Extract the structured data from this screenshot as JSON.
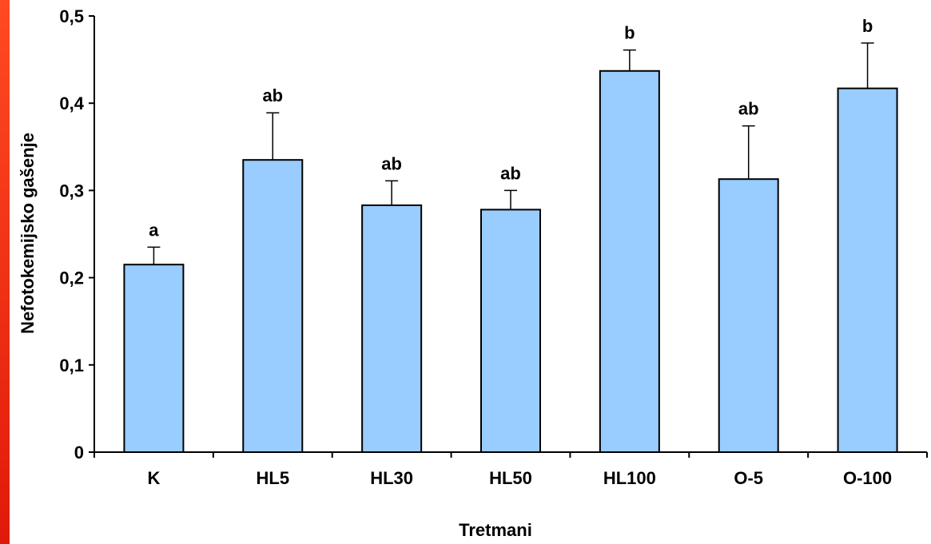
{
  "colors": {
    "bar_fill": "#99ccff",
    "bar_stroke": "#000000",
    "edge_strip_top": "#ff4a22",
    "edge_strip_bottom": "#e01a0a"
  },
  "chart_data": {
    "type": "bar",
    "title": "",
    "xlabel": "Tretmani",
    "ylabel": "Nefotokemijsko gašenje",
    "ylim": [
      0,
      0.5
    ],
    "y_ticks": [
      0,
      0.1,
      0.2,
      0.3,
      0.4,
      0.5
    ],
    "y_tick_labels": [
      "0",
      "0,1",
      "0,2",
      "0,3",
      "0,4",
      "0,5"
    ],
    "categories": [
      "K",
      "HL5",
      "HL30",
      "HL50",
      "HL100",
      "O-5",
      "O-100"
    ],
    "values": [
      0.215,
      0.335,
      0.283,
      0.278,
      0.437,
      0.313,
      0.417
    ],
    "error_upper": [
      0.02,
      0.054,
      0.028,
      0.022,
      0.024,
      0.061,
      0.052
    ],
    "significance_labels": [
      "a",
      "ab",
      "ab",
      "ab",
      "b",
      "ab",
      "b"
    ],
    "grid": false,
    "legend": "none"
  }
}
